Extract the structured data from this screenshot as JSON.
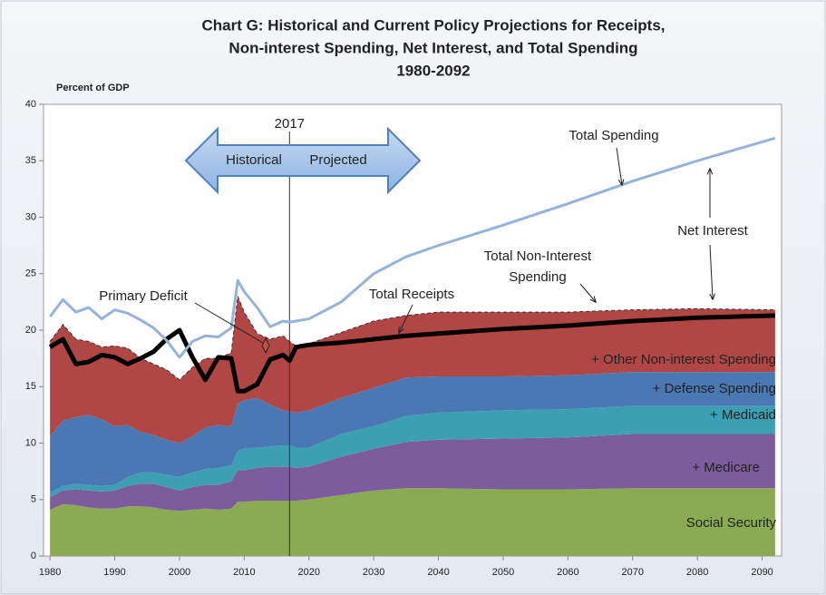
{
  "chart_data": {
    "type": "area",
    "title": [
      "Chart G:  Historical and Current Policy Projections for Receipts,",
      "Non-interest Spending, Net Interest, and Total Spending",
      "1980-2092"
    ],
    "y_label": "Percent of GDP",
    "x": [
      1980,
      1982,
      1984,
      1986,
      1988,
      1990,
      1992,
      1994,
      1996,
      1998,
      2000,
      2002,
      2004,
      2006,
      2008,
      2009,
      2010,
      2012,
      2014,
      2016,
      2017,
      2018,
      2020,
      2025,
      2030,
      2035,
      2040,
      2050,
      2060,
      2070,
      2080,
      2092
    ],
    "xlim": [
      1979,
      2093
    ],
    "xticks": [
      1980,
      1990,
      2000,
      2010,
      2020,
      2030,
      2040,
      2050,
      2060,
      2070,
      2080,
      2090
    ],
    "ylim": [
      0,
      40
    ],
    "yticks": [
      0,
      5,
      10,
      15,
      20,
      25,
      30,
      35,
      40
    ],
    "projection_start": 2017,
    "series": [
      {
        "name": "Social Security",
        "type": "area",
        "color": "#8aab52",
        "values": [
          4.1,
          4.6,
          4.5,
          4.3,
          4.2,
          4.2,
          4.4,
          4.4,
          4.3,
          4.1,
          4.0,
          4.1,
          4.2,
          4.1,
          4.2,
          4.8,
          4.8,
          4.9,
          4.9,
          4.9,
          4.9,
          4.9,
          5.0,
          5.4,
          5.8,
          6.0,
          6.0,
          5.9,
          5.9,
          6.0,
          6.0,
          6.0
        ]
      },
      {
        "name": "+ Medicare",
        "type": "area",
        "color": "#7c5c9c",
        "values": [
          1.1,
          1.2,
          1.4,
          1.5,
          1.5,
          1.6,
          1.8,
          2.0,
          2.1,
          2.0,
          1.8,
          2.0,
          2.1,
          2.2,
          2.4,
          2.8,
          2.8,
          2.9,
          3.0,
          3.0,
          3.0,
          2.9,
          2.9,
          3.4,
          3.7,
          4.1,
          4.3,
          4.5,
          4.6,
          4.8,
          4.8,
          4.8
        ]
      },
      {
        "name": "+ Medicaid",
        "type": "area",
        "color": "#3c9fb4",
        "values": [
          0.4,
          0.4,
          0.5,
          0.5,
          0.5,
          0.5,
          0.8,
          1.0,
          1.0,
          1.1,
          1.2,
          1.3,
          1.4,
          1.5,
          1.4,
          1.7,
          1.9,
          1.8,
          1.8,
          1.9,
          1.9,
          1.8,
          1.7,
          2.0,
          2.0,
          2.3,
          2.4,
          2.5,
          2.5,
          2.5,
          2.5,
          2.5
        ]
      },
      {
        "name": "+ Defense Spending",
        "type": "area",
        "color": "#4a78b2",
        "values": [
          5.0,
          5.8,
          5.9,
          6.2,
          5.9,
          5.2,
          4.6,
          3.6,
          3.3,
          3.1,
          3.0,
          3.2,
          3.7,
          3.8,
          3.5,
          4.2,
          4.3,
          4.4,
          3.7,
          3.1,
          3.0,
          3.1,
          3.3,
          3.2,
          3.4,
          3.4,
          3.2,
          3.0,
          3.0,
          3.0,
          3.0,
          3.0
        ]
      },
      {
        "name": "+ Other Non-interest Spending",
        "type": "area",
        "color": "#b04745",
        "values": [
          8.4,
          8.5,
          6.9,
          6.5,
          6.4,
          7.1,
          6.8,
          6.5,
          6.3,
          6.2,
          5.6,
          6.1,
          6.1,
          5.9,
          6.5,
          9.5,
          7.8,
          5.7,
          5.8,
          6.6,
          6.2,
          5.9,
          5.9,
          5.8,
          5.9,
          5.5,
          5.7,
          5.7,
          5.6,
          5.5,
          5.6,
          5.5
        ]
      },
      {
        "name": "Total Receipts",
        "type": "line",
        "color": "#000000",
        "width": 5,
        "values": [
          18.5,
          19.2,
          17.0,
          17.2,
          17.8,
          17.6,
          17.0,
          17.5,
          18.1,
          19.2,
          20.0,
          17.6,
          15.6,
          17.6,
          17.5,
          14.6,
          14.6,
          15.2,
          17.4,
          17.8,
          17.3,
          18.5,
          18.7,
          18.9,
          19.2,
          19.5,
          19.7,
          20.1,
          20.4,
          20.8,
          21.1,
          21.3
        ]
      },
      {
        "name": "Total Spending",
        "type": "line",
        "color": "#95b3d7",
        "width": 3,
        "values": [
          21.2,
          22.7,
          21.6,
          22.0,
          21.0,
          21.8,
          21.5,
          20.9,
          20.2,
          19.1,
          17.6,
          19.0,
          19.5,
          19.4,
          20.2,
          24.4,
          23.4,
          22.0,
          20.3,
          20.8,
          20.7,
          20.8,
          21.0,
          22.5,
          25.0,
          26.5,
          27.5,
          29.3,
          31.2,
          33.2,
          35.0,
          37.0
        ]
      }
    ],
    "annotations": {
      "historical": "Historical",
      "projected": "Projected",
      "net_interest": "Net Interest",
      "total_non_interest": [
        "Total Non-Interest",
        "Spending"
      ],
      "primary_deficit": "Primary Deficit"
    }
  }
}
